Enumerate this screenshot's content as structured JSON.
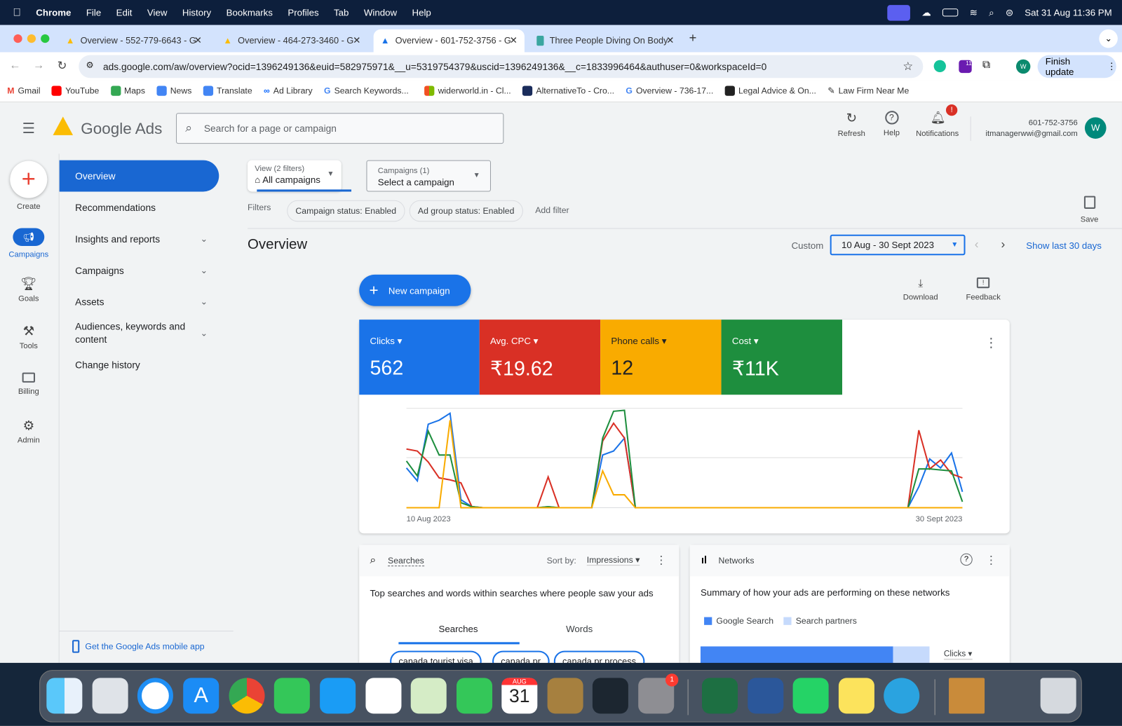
{
  "menubar": {
    "app": "Chrome",
    "items": [
      "File",
      "Edit",
      "View",
      "History",
      "Bookmarks",
      "Profiles",
      "Tab",
      "Window",
      "Help"
    ],
    "clock": "Sat 31 Aug  11:36 PM"
  },
  "tabs": [
    {
      "title": "Overview - 552-779-6643 - G"
    },
    {
      "title": "Overview - 464-273-3460 - G"
    },
    {
      "title": "Overview - 601-752-3756 - G",
      "active": true
    },
    {
      "title": "Three People Diving On Body"
    }
  ],
  "address": {
    "url": "ads.google.com/aw/overview?ocid=1396249136&euid=582975971&__u=5319754379&uscid=1396249136&__c=1833996464&authuser=0&workspaceId=0",
    "profile": "W",
    "finish_update": "Finish update",
    "ext_badge": "11"
  },
  "bookmarks": [
    "Gmail",
    "YouTube",
    "Maps",
    "News",
    "Translate",
    "Ad Library",
    "Search Keywords...",
    "widerworld.in - Cl...",
    "AlternativeTo - Cro...",
    "Overview - 736-17...",
    "Legal Advice & On...",
    "Law Firm Near Me"
  ],
  "header": {
    "product": "Google Ads",
    "search_placeholder": "Search for a page or campaign",
    "refresh": "Refresh",
    "help": "Help",
    "notifications": "Notifications",
    "notif_badge": "!",
    "account_id": "601-752-3756",
    "email": "itmanagerwwi@gmail.com",
    "avatar": "W"
  },
  "rail": {
    "create": "Create",
    "campaigns": "Campaigns",
    "goals": "Goals",
    "tools": "Tools",
    "billing": "Billing",
    "admin": "Admin"
  },
  "nav": {
    "items": [
      "Overview",
      "Recommendations",
      "Insights and reports",
      "Campaigns",
      "Assets",
      "Audiences, keywords and content",
      "Change history"
    ],
    "mobile_app": "Get the Google Ads mobile app"
  },
  "filters": {
    "view_label": "View (2 filters)",
    "view_value": "All campaigns",
    "campaigns_label": "Campaigns (1)",
    "campaigns_value": "Select a campaign",
    "filters_label": "Filters",
    "chips": [
      "Campaign status: Enabled",
      "Ad group status: Enabled"
    ],
    "add_filter": "Add filter",
    "save": "Save"
  },
  "overview": {
    "title": "Overview",
    "custom": "Custom",
    "date_range": "10 Aug - 30 Sept 2023",
    "show_last": "Show last 30 days",
    "new_campaign": "New campaign",
    "download": "Download",
    "feedback": "Feedback"
  },
  "metrics": [
    {
      "label": "Clicks",
      "value": "562",
      "color": "#1a73e8"
    },
    {
      "label": "Avg. CPC",
      "value": "₹19.62",
      "color": "#d93025"
    },
    {
      "label": "Phone calls",
      "value": "12",
      "color": "#f9ab00"
    },
    {
      "label": "Cost",
      "value": "₹11K",
      "color": "#1e8e3e"
    }
  ],
  "chart_data": {
    "type": "line",
    "x_start_label": "10 Aug 2023",
    "x_end_label": "30 Sept 2023",
    "grid": true,
    "legend": "metric tiles above chart",
    "series": [
      {
        "name": "Clicks",
        "color": "#1a73e8",
        "values": [
          40,
          27,
          84,
          88,
          95,
          8,
          1,
          0,
          0,
          0,
          0,
          0,
          0,
          1,
          0,
          0,
          0,
          0,
          53,
          57,
          70,
          0,
          0,
          0,
          0,
          0,
          0,
          0,
          0,
          0,
          0,
          0,
          0,
          0,
          0,
          0,
          0,
          0,
          0,
          0,
          0,
          0,
          0,
          0,
          0,
          0,
          0,
          21,
          49,
          40,
          55,
          16
        ]
      },
      {
        "name": "Avg. CPC",
        "color": "#d93025",
        "values": [
          59,
          57,
          46,
          30,
          28,
          25,
          1,
          0,
          0,
          0,
          0,
          0,
          0,
          31,
          0,
          0,
          0,
          0,
          67,
          85,
          70,
          0,
          0,
          0,
          0,
          0,
          0,
          0,
          0,
          0,
          0,
          0,
          0,
          0,
          0,
          0,
          0,
          0,
          0,
          0,
          0,
          0,
          0,
          0,
          0,
          0,
          0,
          78,
          39,
          48,
          34,
          30
        ]
      },
      {
        "name": "Cost",
        "color": "#1e8e3e",
        "values": [
          47,
          32,
          77,
          53,
          53,
          5,
          1,
          0,
          0,
          0,
          0,
          0,
          0,
          1,
          0,
          0,
          0,
          0,
          70,
          97,
          98,
          0,
          0,
          0,
          0,
          0,
          0,
          0,
          0,
          0,
          0,
          0,
          0,
          0,
          0,
          0,
          0,
          0,
          0,
          0,
          0,
          0,
          0,
          0,
          0,
          0,
          0,
          39,
          39,
          38,
          37,
          6
        ]
      },
      {
        "name": "Phone calls",
        "color": "#f9ab00",
        "values": [
          0,
          0,
          0,
          0,
          88,
          0,
          0,
          0,
          0,
          0,
          0,
          0,
          0,
          0,
          0,
          0,
          0,
          0,
          37,
          13,
          13,
          0,
          0,
          0,
          0,
          0,
          0,
          0,
          0,
          0,
          0,
          0,
          0,
          0,
          0,
          0,
          0,
          0,
          0,
          0,
          0,
          0,
          0,
          0,
          0,
          0,
          0,
          0,
          0,
          0,
          0,
          0
        ]
      }
    ]
  },
  "searches": {
    "title": "Searches",
    "sort_label": "Sort by:",
    "sort_value": "Impressions",
    "desc": "Top searches and words within searches where people saw your ads",
    "tab_searches": "Searches",
    "tab_words": "Words",
    "chips": [
      "canada tourist visa",
      "canada pr",
      "canada pr process"
    ]
  },
  "networks": {
    "title": "Networks",
    "desc": "Summary of how your ads are performing on these networks",
    "legend": [
      "Google Search",
      "Search partners"
    ],
    "metric": "Clicks",
    "google_search_share": 0.84
  },
  "dock": {
    "calendar_month": "AUG",
    "calendar_day": "31",
    "settings_badge": "1",
    "apps": [
      "finder",
      "launchpad",
      "safari",
      "app-store",
      "chrome",
      "messages",
      "mail",
      "photos",
      "maps",
      "facetime",
      "calendar",
      "contacts",
      "app",
      "system-settings",
      "excel",
      "word",
      "whatsapp",
      "notes",
      "telegram"
    ]
  }
}
